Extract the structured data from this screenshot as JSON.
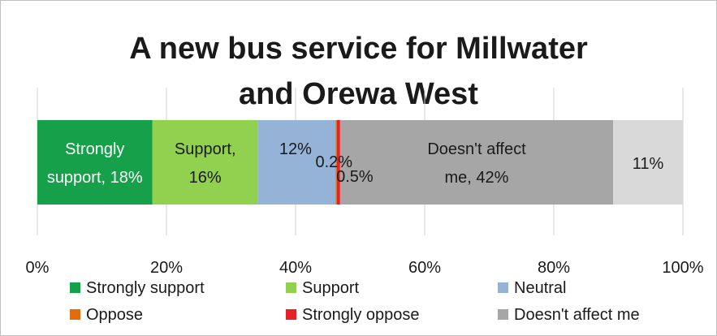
{
  "chart_data": {
    "type": "bar",
    "orientation": "horizontal-stacked-100",
    "title": "A new bus service for Millwater and Orewa West",
    "title_lines": [
      "A new bus service for Millwater",
      "and Orewa West"
    ],
    "xlim": [
      0,
      100
    ],
    "x_ticks": [
      "0%",
      "20%",
      "40%",
      "60%",
      "80%",
      "100%"
    ],
    "grid": true,
    "legend_position": "bottom",
    "series": [
      {
        "name": "Strongly support",
        "value": 17.8,
        "label_lines": [
          "Strongly",
          "support, 18%"
        ],
        "color": "#17a04a",
        "label_color": "#ffffff"
      },
      {
        "name": "Support",
        "value": 16.4,
        "label_lines": [
          "Support,",
          "16%"
        ],
        "color": "#92d050",
        "label_color": "#1a1a1a"
      },
      {
        "name": "Neutral",
        "value": 12.0,
        "label_lines": [
          "12%"
        ],
        "color": "#95b3d7",
        "label_color": "#1a1a1a"
      },
      {
        "name": "Oppose",
        "value": 0.2,
        "label_lines": [
          "0.2%"
        ],
        "color": "#e46c0a",
        "label_color": "#1a1a1a"
      },
      {
        "name": "Strongly oppose",
        "value": 0.5,
        "label_lines": [
          "0.5%"
        ],
        "color": "#e8202a",
        "label_color": "#1a1a1a"
      },
      {
        "name": "Doesn't affect me",
        "value": 42.3,
        "label_lines": [
          "Doesn't affect",
          "me, 42%"
        ],
        "color": "#a6a6a6",
        "label_color": "#1a1a1a"
      },
      {
        "name": "",
        "value": 10.8,
        "label_lines": [
          "11%"
        ],
        "color": "#d9d9d9",
        "label_color": "#1a1a1a"
      }
    ],
    "legend": [
      "Strongly support",
      "Support",
      "Neutral",
      "Oppose",
      "Strongly oppose",
      "Doesn't affect me"
    ]
  }
}
